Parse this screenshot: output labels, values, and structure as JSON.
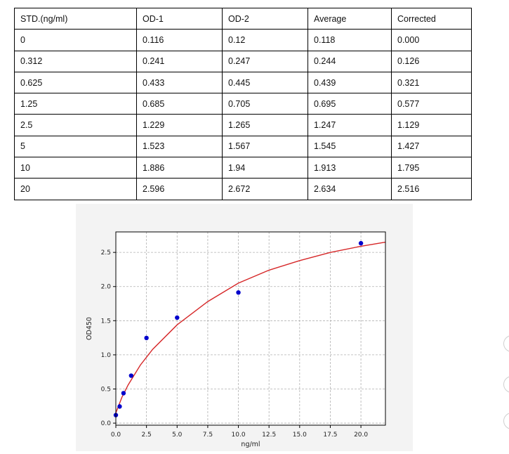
{
  "table": {
    "headers": [
      "STD.(ng/ml)",
      "OD-1",
      "OD-2",
      "Average",
      "Corrected"
    ],
    "rows": [
      [
        "0",
        "0.116",
        "0.12",
        "0.118",
        "0.000"
      ],
      [
        "0.312",
        "0.241",
        "0.247",
        "0.244",
        "0.126"
      ],
      [
        "0.625",
        "0.433",
        "0.445",
        "0.439",
        "0.321"
      ],
      [
        "1.25",
        "0.685",
        "0.705",
        "0.695",
        "0.577"
      ],
      [
        "2.5",
        "1.229",
        "1.265",
        "1.247",
        "1.129"
      ],
      [
        "5",
        "1.523",
        "1.567",
        "1.545",
        "1.427"
      ],
      [
        "10",
        "1.886",
        "1.94",
        "1.913",
        "1.795"
      ],
      [
        "20",
        "2.596",
        "2.672",
        "2.634",
        "2.516"
      ]
    ]
  },
  "chart_data": {
    "type": "scatter",
    "xlabel": "ng/ml",
    "ylabel": "OD450",
    "xlim": [
      0,
      22
    ],
    "ylim": [
      -0.03,
      2.8
    ],
    "xticks": [
      "0.0",
      "2.5",
      "5.0",
      "7.5",
      "10.0",
      "12.5",
      "15.0",
      "17.5",
      "20.0"
    ],
    "yticks": [
      "0.0",
      "0.5",
      "1.0",
      "1.5",
      "2.0",
      "2.5"
    ],
    "grid": true,
    "series": [
      {
        "kind": "points",
        "color": "#0000cc",
        "x": [
          0,
          0.312,
          0.625,
          1.25,
          2.5,
          5,
          10,
          20
        ],
        "y": [
          0.118,
          0.244,
          0.439,
          0.695,
          1.247,
          1.545,
          1.913,
          2.634
        ]
      },
      {
        "kind": "fit-curve",
        "color": "#d62728",
        "x": [
          0,
          0.5,
          1,
          2,
          3,
          5,
          7.5,
          10,
          12.5,
          15,
          17.5,
          20,
          22
        ],
        "y": [
          0.15,
          0.38,
          0.56,
          0.85,
          1.08,
          1.44,
          1.78,
          2.05,
          2.24,
          2.38,
          2.5,
          2.59,
          2.65
        ]
      }
    ]
  },
  "colors": {
    "panel_bg": "#f3f3f3",
    "grid": "#b0b0b0",
    "point": "#0000cc",
    "curve": "#d62728"
  }
}
